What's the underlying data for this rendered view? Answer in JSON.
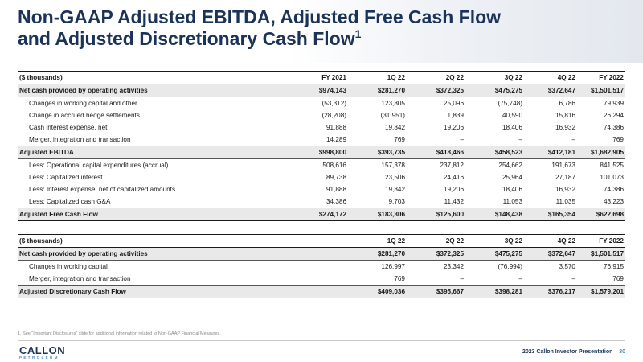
{
  "header": {
    "title": [
      "Non-GAAP Adjusted EBITDA, Adjusted Free Cash Flow",
      "and Adjusted Discretionary Cash Flow"
    ],
    "footnote_mark": "1"
  },
  "tables": [
    {
      "columns": [
        "($ thousands)",
        "FY 2021",
        "1Q 22",
        "2Q 22",
        "3Q 22",
        "4Q 22",
        "FY 2022"
      ],
      "rows": [
        [
          "Net cash provided by operating activities",
          "$974,143",
          "$281,270",
          "$372,325",
          "$475,275",
          "$372,647",
          "$1,501,517"
        ],
        [
          "Changes in working capital and other",
          "(53,312)",
          "123,805",
          "25,096",
          "(75,748)",
          "6,786",
          "79,939"
        ],
        [
          "Change in accrued hedge settlements",
          "(28,208)",
          "(31,951)",
          "1,839",
          "40,590",
          "15,816",
          "26,294"
        ],
        [
          "Cash interest expense, net",
          "91,888",
          "19,842",
          "19,206",
          "18,406",
          "16,932",
          "74,386"
        ],
        [
          "Merger, integration and transaction",
          "14,289",
          "769",
          "–",
          "–",
          "–",
          "769"
        ],
        [
          "Adjusted EBITDA",
          "$998,800",
          "$393,735",
          "$418,466",
          "$458,523",
          "$412,181",
          "$1,682,905"
        ],
        [
          "Less: Operational capital expenditures (accrual)",
          "508,616",
          "157,378",
          "237,812",
          "254,662",
          "191,673",
          "841,525"
        ],
        [
          "Less: Capitalized interest",
          "89,738",
          "23,506",
          "24,416",
          "25,964",
          "27,187",
          "101,073"
        ],
        [
          "Less: Interest expense, net of capitalized amounts",
          "91,888",
          "19,842",
          "19,206",
          "18,406",
          "16,932",
          "74,386"
        ],
        [
          "Less: Capitalized cash G&A",
          "34,386",
          "9,703",
          "11,432",
          "11,053",
          "11,035",
          "43,223"
        ],
        [
          "Adjusted Free Cash Flow",
          "$274,172",
          "$183,306",
          "$125,600",
          "$148,438",
          "$165,354",
          "$622,698"
        ]
      ]
    },
    {
      "columns": [
        "($ thousands)",
        "1Q 22",
        "2Q 22",
        "3Q 22",
        "4Q 22",
        "FY 2022"
      ],
      "rows": [
        [
          "Net cash provided by operating activities",
          "$281,270",
          "$372,325",
          "$475,275",
          "$372,647",
          "$1,501,517"
        ],
        [
          "Changes in working capital",
          "126,997",
          "23,342",
          "(76,994)",
          "3,570",
          "76,915"
        ],
        [
          "Merger, integration and transaction",
          "769",
          "–",
          "–",
          "–",
          "769"
        ],
        [
          "Adjusted Discretionary Cash Flow",
          "$409,036",
          "$395,667",
          "$398,281",
          "$376,217",
          "$1,579,201"
        ]
      ]
    }
  ],
  "footnote": "1.  See “Important Disclosures” slide for additional information related to Non-GAAP Financial Measures.",
  "footer": {
    "logo": [
      "CALLON",
      "PETROLEUM"
    ],
    "text": "2023 Callon Investor Presentation",
    "page": "30"
  }
}
